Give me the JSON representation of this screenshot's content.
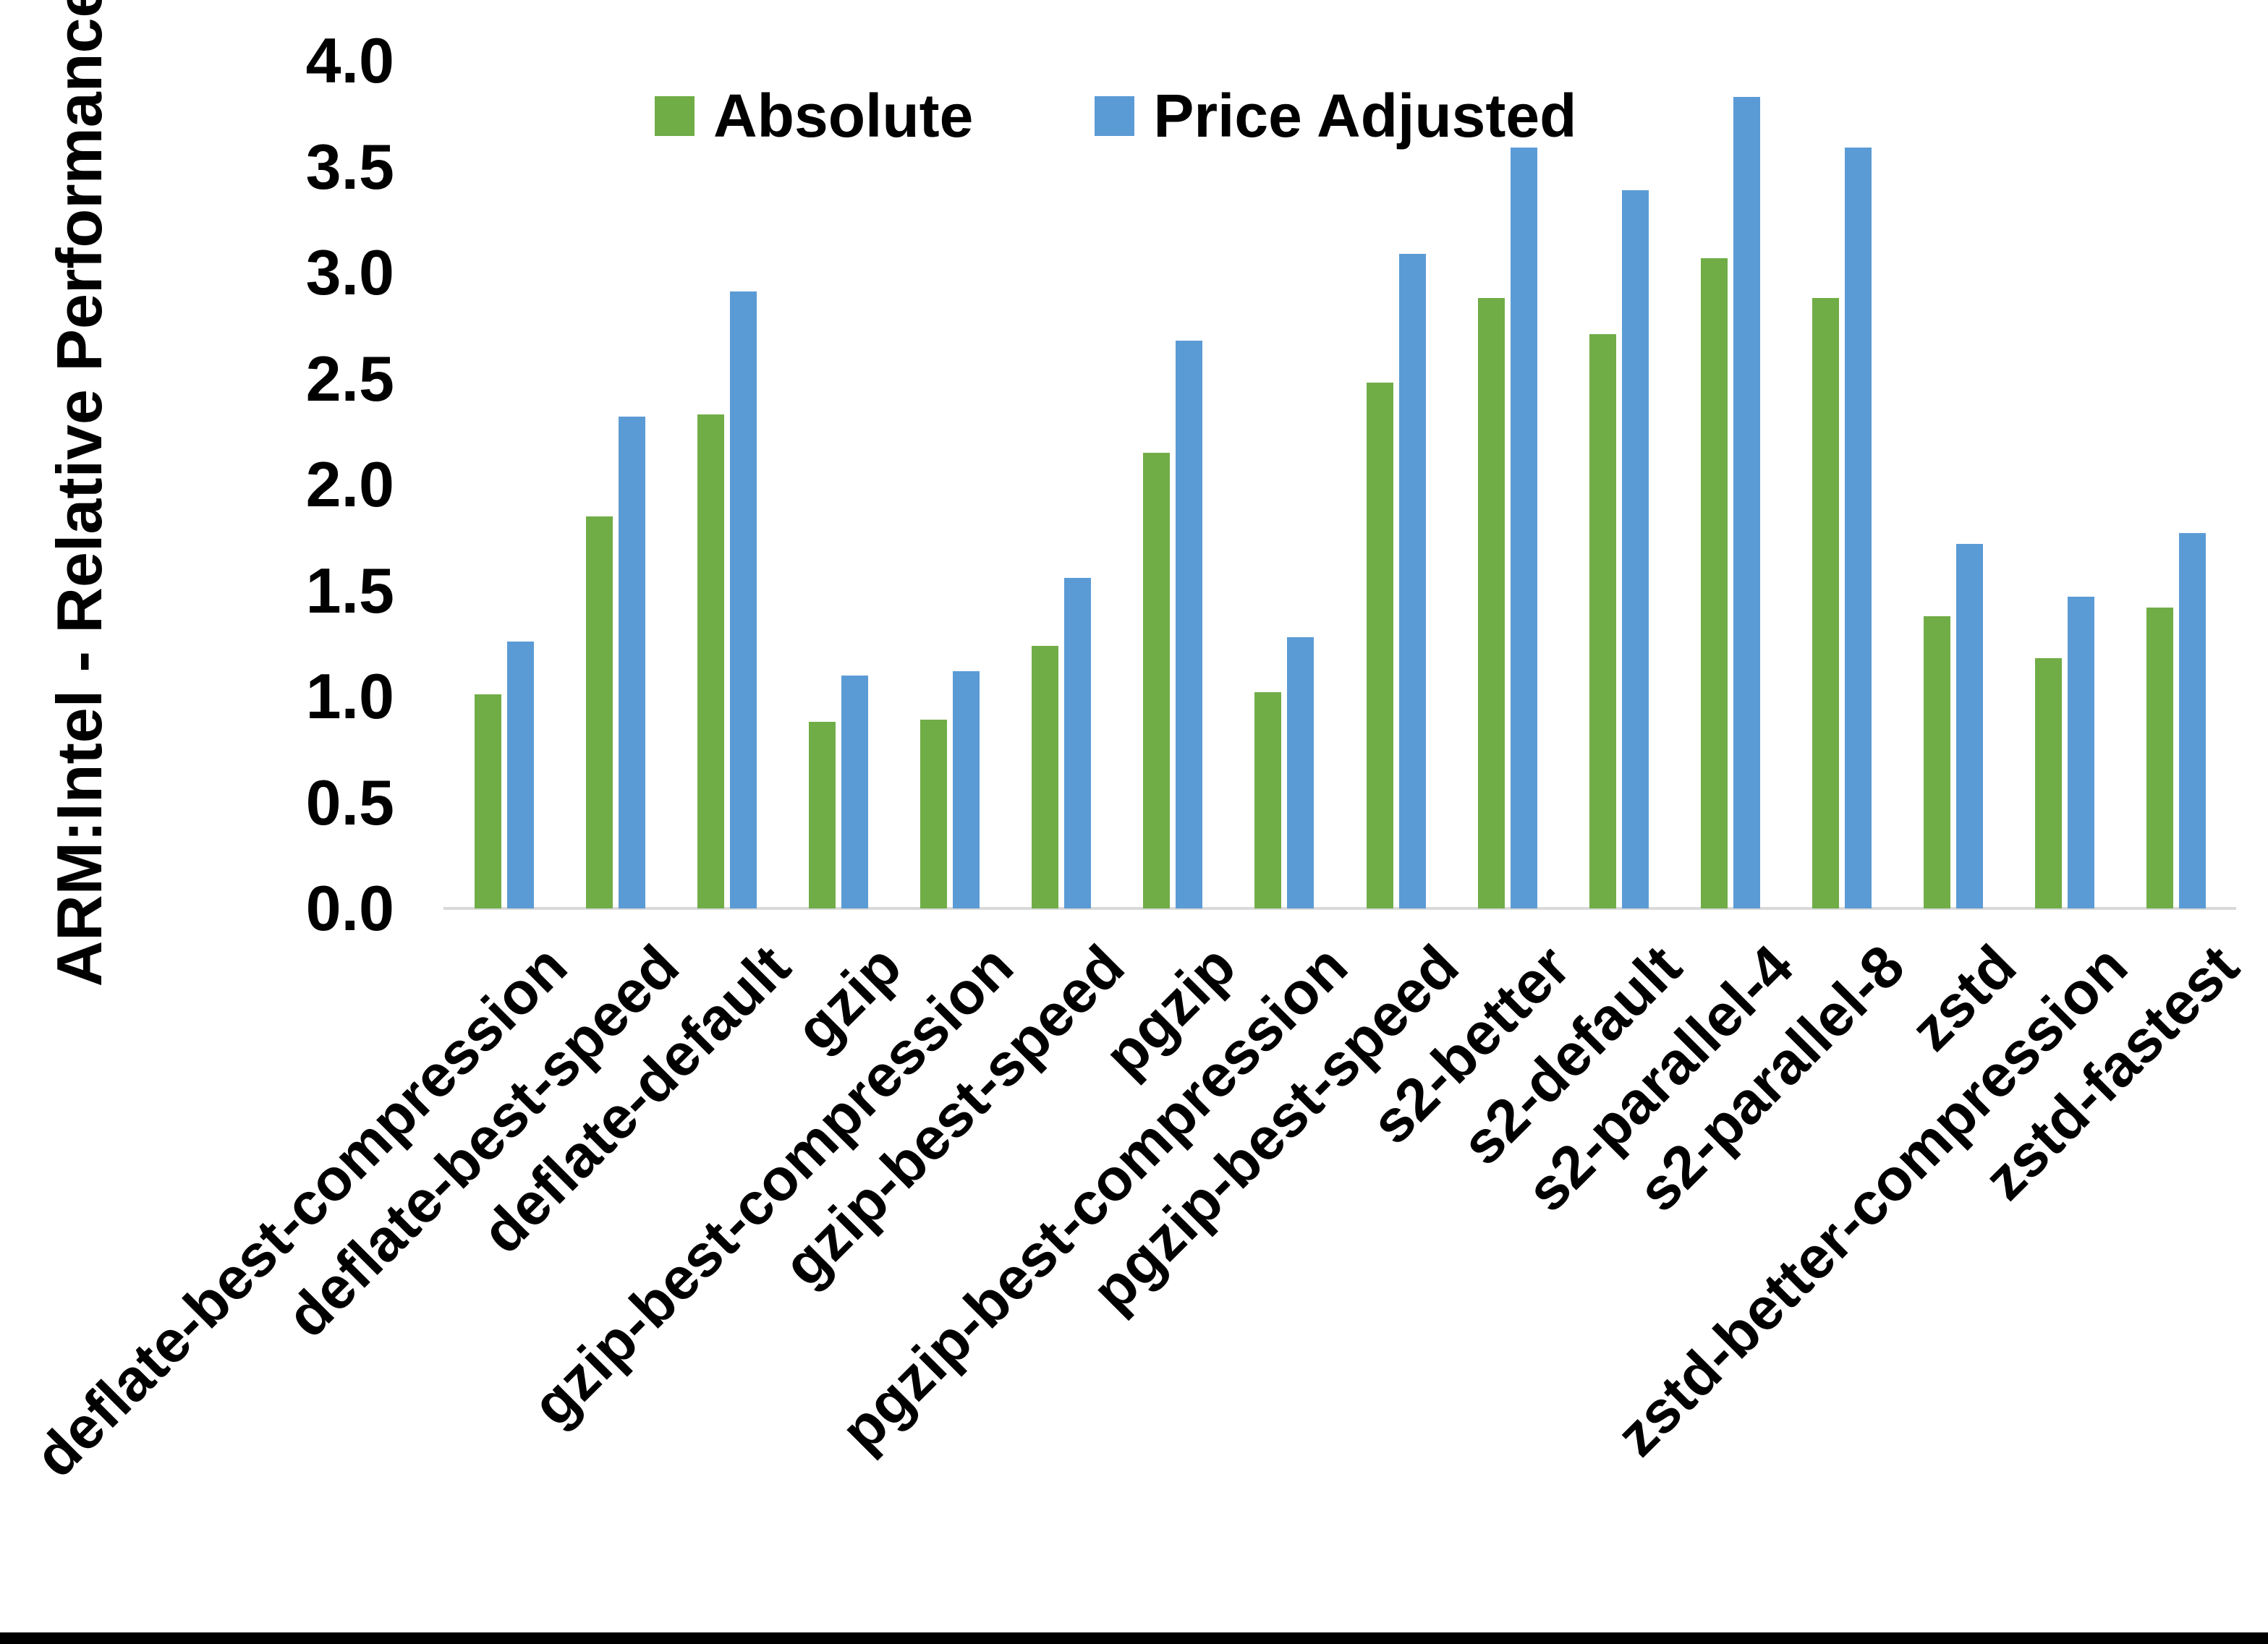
{
  "page": {
    "background": "#ffffff",
    "bottom_border_color": "#000000"
  },
  "legend": {
    "items": [
      {
        "label": "Absolute",
        "color": "#70AD47"
      },
      {
        "label": "Price Adjusted",
        "color": "#5B9BD5"
      }
    ]
  },
  "chart_data": {
    "type": "bar",
    "title": "",
    "xlabel": "",
    "ylabel": "ARM:Intel - Relative Performance",
    "ylim": [
      0,
      4
    ],
    "ytick_step": 0.5,
    "grid": false,
    "legend_position": "top-center",
    "axis_line_color": "#D9D9D9",
    "text_color": "#000000",
    "categories": [
      "deflate-best-compression",
      "deflate-best-speed",
      "deflate-default",
      "gzip",
      "gzip-best-compression",
      "gzip-best-speed",
      "pgzip",
      "pgzip-best-compression",
      "pgzip-best-speed",
      "s2-better",
      "s2-default",
      "s2-parallel-4",
      "s2-parallel-8",
      "zstd",
      "zstd-better-compression",
      "zstd-fastest"
    ],
    "series": [
      {
        "name": "Absolute",
        "color": "#70AD47",
        "values": [
          1.01,
          1.85,
          2.33,
          0.88,
          0.89,
          1.24,
          2.15,
          1.02,
          2.48,
          2.88,
          2.71,
          3.07,
          2.88,
          1.38,
          1.18,
          1.42
        ]
      },
      {
        "name": "Price Adjusted",
        "color": "#5B9BD5",
        "values": [
          1.26,
          2.32,
          2.91,
          1.1,
          1.12,
          1.56,
          2.68,
          1.28,
          3.09,
          3.59,
          3.39,
          3.83,
          3.59,
          1.72,
          1.47,
          1.77
        ]
      }
    ]
  }
}
